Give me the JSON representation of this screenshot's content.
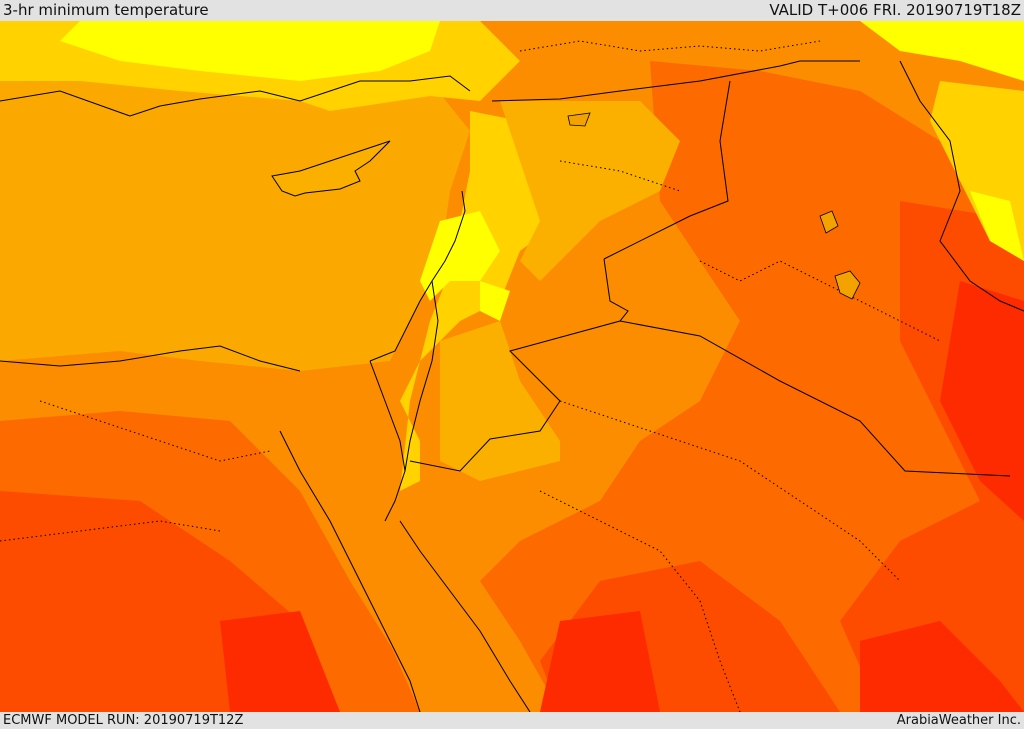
{
  "header": {
    "title": "3-hr minimum temperature",
    "valid": "VALID T+006 FRI. 20190719T18Z"
  },
  "footer": {
    "model_run": "ECMWF MODEL RUN: 20190719T12Z",
    "credit": "ArabiaWeather Inc."
  },
  "palette": {
    "sea": "#fba900",
    "yellow": "#ffff00",
    "light_orange": "#ffd200",
    "amber": "#fbb000",
    "orange": "#fc8c00",
    "dark_orange": "#fd6a00",
    "red_orange": "#fd4c00",
    "red": "#fe2a00",
    "frame": "#e2e2e2"
  }
}
